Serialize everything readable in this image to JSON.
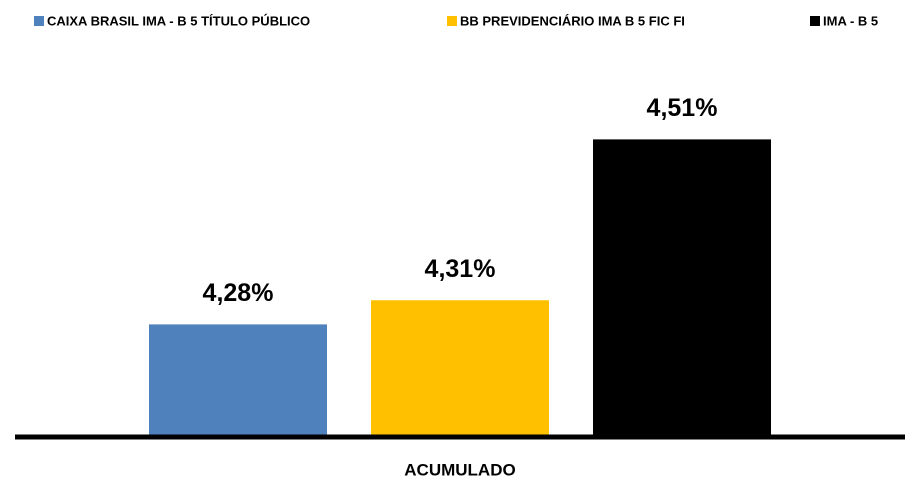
{
  "chart_data": {
    "type": "bar",
    "categories": [
      "ACUMULADO"
    ],
    "series": [
      {
        "name": "CAIXA BRASIL IMA - B 5 TÍTULO PÚBLICO",
        "color": "#4f81bd",
        "values": [
          4.28
        ],
        "value_labels": [
          "4,28%"
        ]
      },
      {
        "name": "BB PREVIDENCIÁRIO IMA B 5 FIC FI",
        "color": "#ffc000",
        "values": [
          4.31
        ],
        "value_labels": [
          "4,31%"
        ]
      },
      {
        "name": "IMA - B 5",
        "color": "#000000",
        "values": [
          4.51
        ],
        "value_labels": [
          "4,51%"
        ]
      }
    ],
    "ylim": [
      4.14,
      4.6
    ],
    "legend": "top"
  }
}
